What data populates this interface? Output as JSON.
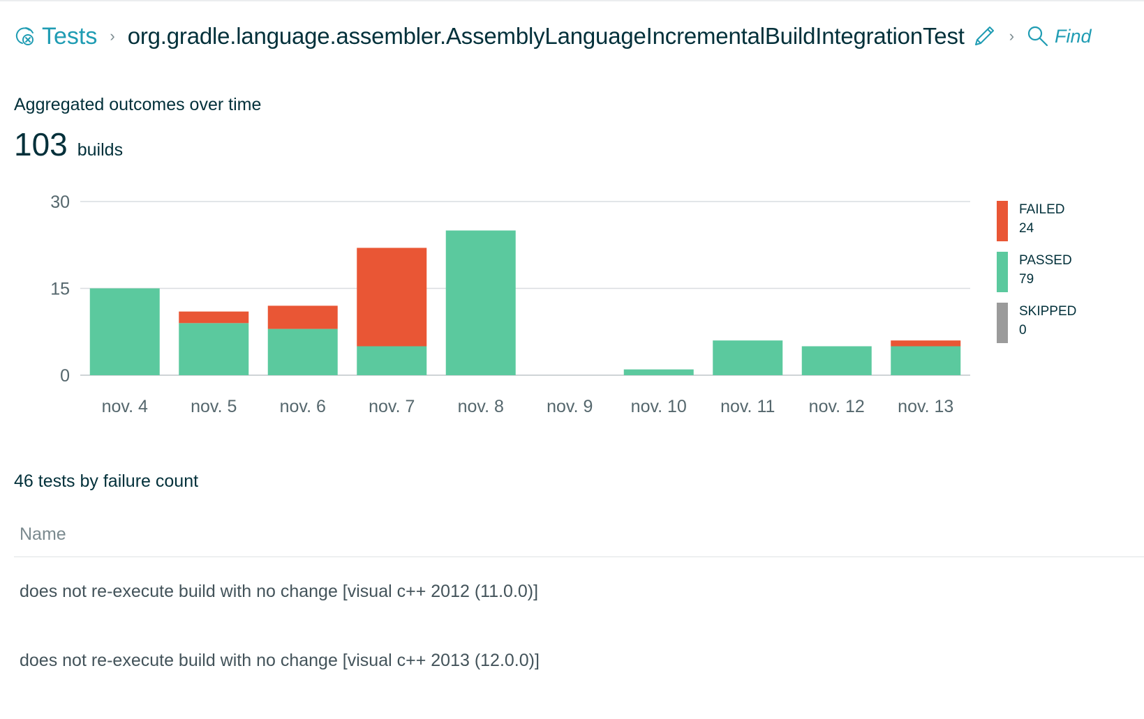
{
  "breadcrumb": {
    "root_label": "Tests",
    "class_name": "org.gradle.language.assembler.AssemblyLanguageIncrementalBuildIntegrationTest",
    "find_label": "Find",
    "separator": "›"
  },
  "outcomes": {
    "title": "Aggregated outcomes over time",
    "build_count": "103",
    "build_label": "builds"
  },
  "legend": [
    {
      "name": "FAILED",
      "count": "24",
      "color": "#e95635"
    },
    {
      "name": "PASSED",
      "count": "79",
      "color": "#5bc99e"
    },
    {
      "name": "SKIPPED",
      "count": "0",
      "color": "#9b9b9b"
    }
  ],
  "chart_data": {
    "type": "bar",
    "stacked": true,
    "categories": [
      "nov. 4",
      "nov. 5",
      "nov. 6",
      "nov. 7",
      "nov. 8",
      "nov. 9",
      "nov. 10",
      "nov. 11",
      "nov. 12",
      "nov. 13"
    ],
    "series": [
      {
        "name": "PASSED",
        "color": "#5bc99e",
        "values": [
          15,
          9,
          8,
          5,
          25,
          0,
          1,
          6,
          5,
          5
        ]
      },
      {
        "name": "FAILED",
        "color": "#e95635",
        "values": [
          0,
          2,
          4,
          17,
          0,
          0,
          0,
          0,
          0,
          1
        ]
      },
      {
        "name": "SKIPPED",
        "color": "#9b9b9b",
        "values": [
          0,
          0,
          0,
          0,
          0,
          0,
          0,
          0,
          0,
          0
        ]
      }
    ],
    "yticks": [
      0,
      15,
      30
    ],
    "ylim": [
      0,
      30
    ],
    "grid": true,
    "legend_position": "right"
  },
  "failures": {
    "title": "46 tests by failure count",
    "column_name": "Name",
    "rows": [
      "does not re-execute build with no change [visual c++ 2012 (11.0.0)]",
      "does not re-execute build with no change [visual c++ 2013 (12.0.0)]"
    ]
  },
  "icons": {
    "tests": "flaky-tests-icon",
    "edit": "pencil-icon",
    "find": "search-icon"
  }
}
